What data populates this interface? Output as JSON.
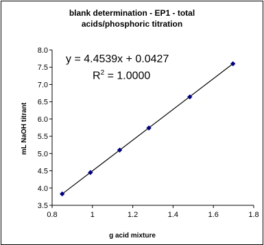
{
  "chart_data": {
    "type": "scatter",
    "title_lines": [
      "blank determination - EP1 - total",
      "acids/phosphoric titration"
    ],
    "xlabel": "g acid mixture",
    "ylabel": "mL NaOH titrant",
    "xlim": [
      0.8,
      1.8
    ],
    "ylim": [
      3.5,
      8.0
    ],
    "xticks": [
      "0.8",
      "1",
      "1.2",
      "1.4",
      "1.6",
      "1.8"
    ],
    "yticks": [
      "3.5",
      "4.0",
      "4.5",
      "5.0",
      "5.5",
      "6.0",
      "6.5",
      "7.0",
      "7.5",
      "8.0"
    ],
    "grid": false,
    "legend": "none",
    "series": [
      {
        "x": [
          0.85,
          0.99,
          1.135,
          1.28,
          1.483,
          1.697
        ],
        "y": [
          3.83,
          4.45,
          5.1,
          5.74,
          6.64,
          7.6
        ],
        "marker_color": "#000080",
        "line_color": "#000000"
      }
    ],
    "trendline": {
      "equation": "y = 4.4539x + 0.0427",
      "r2_label": "R",
      "r2_sup": "2",
      "r2_value": " = 1.0000",
      "slope": 4.4539,
      "intercept": 0.0427
    }
  }
}
